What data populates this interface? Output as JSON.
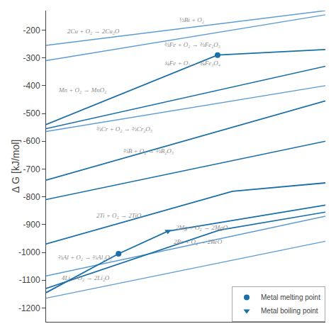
{
  "chart_data": {
    "type": "line",
    "ylabel": "Δ G [kJ/mol]",
    "xlim": [
      0,
      2500
    ],
    "ylim": [
      -1250,
      -130
    ],
    "yticks": [
      -200,
      -300,
      -400,
      -500,
      -600,
      -700,
      -800,
      -900,
      -1000,
      -1100,
      -1200
    ],
    "tick_labels": "y",
    "grid": false,
    "legend": "lower right",
    "lines": [
      {
        "x": [
          0,
          2500
        ],
        "y": [
          -310,
          -145
        ],
        "color": "#5b9bd5"
      },
      {
        "x": [
          0,
          2500
        ],
        "y": [
          -255,
          -130
        ],
        "color": "#5b9bd5"
      },
      {
        "x": [
          0,
          1535,
          2500
        ],
        "y": [
          -540,
          -290,
          -270
        ],
        "color": "#1a6fa8"
      },
      {
        "x": [
          0,
          2500
        ],
        "y": [
          -555,
          -330
        ],
        "color": "#1a6fa8"
      },
      {
        "x": [
          0,
          2500
        ],
        "y": [
          -565,
          -400
        ],
        "color": "#5b9bd5"
      },
      {
        "x": [
          0,
          2500
        ],
        "y": [
          -740,
          -455
        ],
        "color": "#1a6fa8"
      },
      {
        "x": [
          0,
          2500
        ],
        "y": [
          -810,
          -600
        ],
        "color": "#1a6fa8"
      },
      {
        "x": [
          0,
          1668,
          2500
        ],
        "y": [
          -970,
          -780,
          -750
        ],
        "color": "#1a6fa8"
      },
      {
        "x": [
          0,
          2500
        ],
        "y": [
          -1085,
          -870
        ],
        "color": "#5b9bd5"
      },
      {
        "x": [
          0,
          649,
          1090,
          2500
        ],
        "y": [
          -1145,
          -1005,
          -924,
          -830
        ],
        "color": "#1a6fa8"
      },
      {
        "x": [
          0,
          2500
        ],
        "y": [
          -1165,
          -960
        ],
        "color": "#5b9bd5"
      },
      {
        "x": [
          0,
          1551,
          2500
        ],
        "y": [
          -1130,
          -920,
          -855
        ],
        "color": "#1a6fa8"
      }
    ],
    "annotations": [
      {
        "text": "2Cu + O₂ → 2Cu₂O",
        "x": 180,
        "y": -205,
        "color": "#8c8c8c"
      },
      {
        "text": "⅓Bi + O₂",
        "x": 1180,
        "y": -163,
        "color": "#8c8c8c"
      },
      {
        "text": "⅔Fe + O₂ → ⅔Fe₂O₃",
        "x": 1050,
        "y": -252,
        "color": "#8c8c8c"
      },
      {
        "text": "¾Fe + O₂ → ¾Fe₃O₄",
        "x": 1050,
        "y": -318,
        "color": "#8c8c8c"
      },
      {
        "text": "Mn + O₂ → MnO₂",
        "x": 95,
        "y": -415,
        "color": "#8c8c8c"
      },
      {
        "text": "⅔Cr + O₂ → ⅔Cr₂O₃",
        "x": 440,
        "y": -557,
        "color": "#8c8c8c"
      },
      {
        "text": "⅔B + O₂ → ⅔B₂O₃",
        "x": 680,
        "y": -635,
        "color": "#8c8c8c"
      },
      {
        "text": "2Ti + O₂ → 2TiO",
        "x": 440,
        "y": -867,
        "color": "#8c8c8c"
      },
      {
        "text": "⅔Al + O₂ → ⅔Al₂O₃",
        "x": 95,
        "y": -1017,
        "color": "#8c8c8c"
      },
      {
        "text": "2Mg + O₂ → 2MgO",
        "x": 1150,
        "y": -910,
        "color": "#8c8c8c"
      },
      {
        "text": "4Li + O₂ → 2Li₂O",
        "x": 130,
        "y": -1092,
        "color": "#8c8c8c"
      },
      {
        "text": "2Be + O₂ → 2BeO",
        "x": 1130,
        "y": -962,
        "color": "#8c8c8c"
      }
    ],
    "series": [
      {
        "name": "Metal melting point",
        "type": "scatter",
        "marker": "circle",
        "color": "#1a6fa8",
        "x": [
          1535,
          649
        ],
        "values": [
          -290,
          -1005
        ]
      },
      {
        "name": "Metal boiling point",
        "type": "scatter",
        "marker": "triangle-down",
        "color": "#1a6fa8",
        "x": [
          1090
        ],
        "values": [
          -924
        ]
      }
    ]
  }
}
